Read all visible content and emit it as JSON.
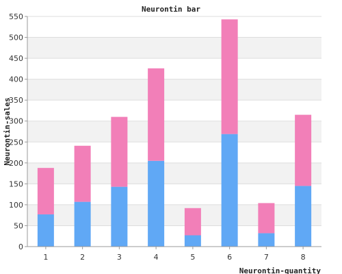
{
  "chart_data": {
    "type": "bar",
    "stacked": true,
    "title": "Neurontin bar",
    "xlabel": "Neurontin-quantity",
    "ylabel": "Neurontin-sales",
    "categories": [
      "1",
      "2",
      "3",
      "4",
      "5",
      "6",
      "7",
      "8"
    ],
    "series": [
      {
        "values": [
          77,
          107,
          143,
          205,
          27,
          269,
          32,
          145
        ],
        "color": "#60a8f5"
      },
      {
        "values": [
          111,
          134,
          167,
          221,
          65,
          274,
          72,
          170
        ],
        "color": "#f27fb8"
      }
    ],
    "ylim": [
      0,
      550
    ],
    "yticks": [
      0,
      50,
      100,
      150,
      200,
      250,
      300,
      350,
      400,
      450,
      500,
      550
    ],
    "grid": true,
    "band_colors": [
      "#ffffff",
      "#f2f2f2"
    ],
    "legend": "none"
  }
}
